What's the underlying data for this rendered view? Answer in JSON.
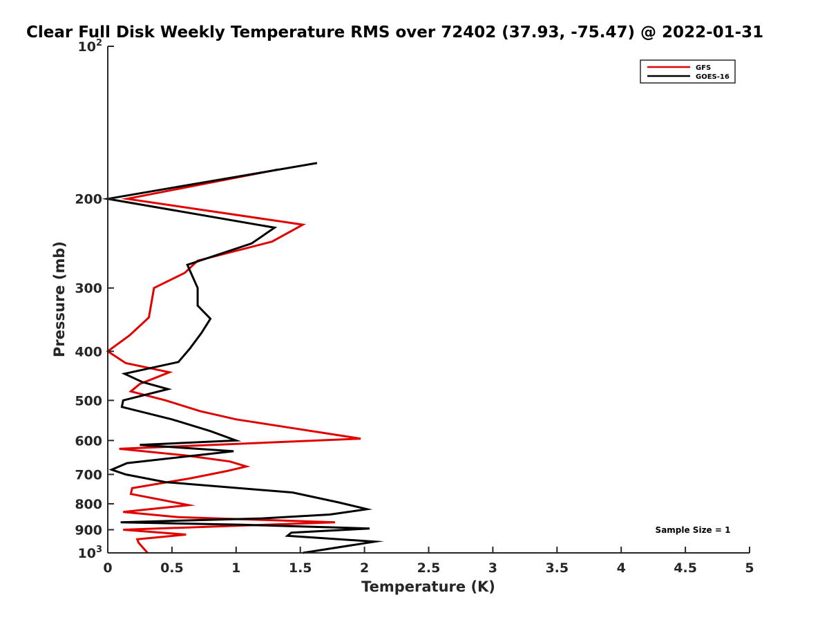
{
  "chart_data": {
    "type": "line",
    "title": "Clear Full Disk Weekly Temperature RMS over 72402 (37.93, -75.47) @ 2022-01-31",
    "xlabel": "Temperature (K)",
    "ylabel": "Pressure (mb)",
    "xlim": [
      0,
      5
    ],
    "ylim": [
      100,
      1000
    ],
    "y_scale": "log",
    "y_reversed": true,
    "grid": false,
    "legend_position": "top-right",
    "x_ticks": [
      "0",
      "0.5",
      "1",
      "1.5",
      "2",
      "2.5",
      "3",
      "3.5",
      "4",
      "4.5",
      "5"
    ],
    "y_ticks": [
      {
        "value": 100,
        "base": "10",
        "exp": "2"
      },
      {
        "value": 200,
        "label": "200"
      },
      {
        "value": 300,
        "label": "300"
      },
      {
        "value": 400,
        "label": "400"
      },
      {
        "value": 500,
        "label": "500"
      },
      {
        "value": 600,
        "label": "600"
      },
      {
        "value": 700,
        "label": "700"
      },
      {
        "value": 800,
        "label": "800"
      },
      {
        "value": 900,
        "label": "900"
      },
      {
        "value": 1000,
        "base": "10",
        "exp": "3"
      }
    ],
    "annotation": "Sample Size = 1",
    "series": [
      {
        "name": "GFS",
        "color": "#e00000",
        "points": [
          [
            1.33,
            175
          ],
          [
            0.15,
            200
          ],
          [
            1.52,
            225
          ],
          [
            1.28,
            243
          ],
          [
            0.7,
            265
          ],
          [
            0.6,
            280
          ],
          [
            0.36,
            300
          ],
          [
            0.32,
            343
          ],
          [
            0.17,
            372
          ],
          [
            0.0,
            400
          ],
          [
            0.14,
            422
          ],
          [
            0.48,
            440
          ],
          [
            0.25,
            464
          ],
          [
            0.18,
            480
          ],
          [
            0.45,
            500
          ],
          [
            0.72,
            525
          ],
          [
            1.0,
            545
          ],
          [
            1.4,
            565
          ],
          [
            1.97,
            595
          ],
          [
            0.09,
            623
          ],
          [
            0.6,
            642
          ],
          [
            0.95,
            660
          ],
          [
            1.08,
            675
          ],
          [
            0.92,
            690
          ],
          [
            0.65,
            712
          ],
          [
            0.19,
            745
          ],
          [
            0.18,
            765
          ],
          [
            0.63,
            805
          ],
          [
            0.12,
            830
          ],
          [
            0.55,
            850
          ],
          [
            1.77,
            870
          ],
          [
            0.12,
            900
          ],
          [
            0.61,
            920
          ],
          [
            0.23,
            940
          ],
          [
            0.24,
            955
          ],
          [
            0.31,
            1000
          ]
        ]
      },
      {
        "name": "GOES-16",
        "color": "#000000",
        "points": [
          [
            1.63,
            170
          ],
          [
            0.0,
            200
          ],
          [
            1.3,
            228
          ],
          [
            1.12,
            245
          ],
          [
            0.62,
            270
          ],
          [
            0.7,
            300
          ],
          [
            0.7,
            325
          ],
          [
            0.8,
            345
          ],
          [
            0.73,
            368
          ],
          [
            0.64,
            395
          ],
          [
            0.55,
            420
          ],
          [
            0.13,
            443
          ],
          [
            0.27,
            460
          ],
          [
            0.47,
            475
          ],
          [
            0.12,
            500
          ],
          [
            0.11,
            515
          ],
          [
            0.5,
            545
          ],
          [
            0.8,
            575
          ],
          [
            1.0,
            600
          ],
          [
            0.25,
            612
          ],
          [
            0.98,
            630
          ],
          [
            0.15,
            665
          ],
          [
            0.03,
            685
          ],
          [
            0.14,
            700
          ],
          [
            0.45,
            725
          ],
          [
            1.44,
            760
          ],
          [
            1.8,
            795
          ],
          [
            2.02,
            820
          ],
          [
            1.73,
            840
          ],
          [
            1.2,
            855
          ],
          [
            0.1,
            870
          ],
          [
            1.05,
            880
          ],
          [
            2.04,
            895
          ],
          [
            1.43,
            912
          ],
          [
            1.4,
            925
          ],
          [
            2.08,
            950
          ],
          [
            1.52,
            1000
          ]
        ]
      }
    ]
  }
}
